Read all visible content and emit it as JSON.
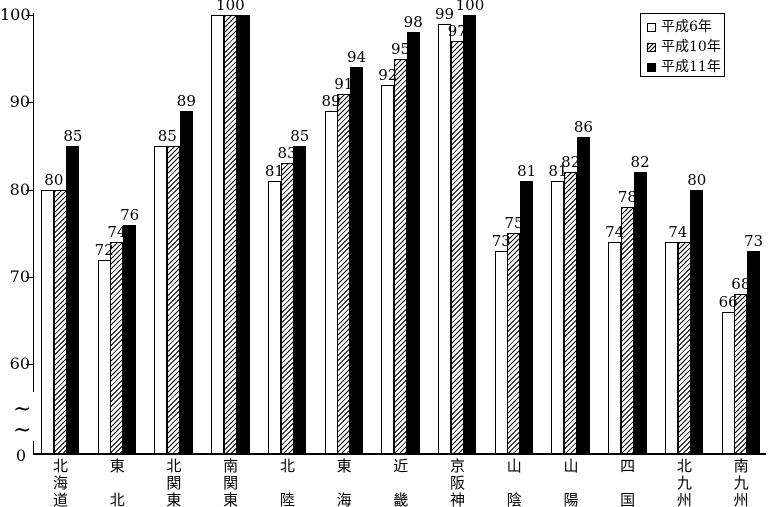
{
  "chart_data": {
    "type": "bar",
    "title": "",
    "xlabel": "",
    "ylabel": "",
    "categories": [
      "北海道",
      "東北",
      "北関東",
      "南関東",
      "北陸",
      "東海",
      "近畿",
      "京阪神",
      "山陰",
      "山陽",
      "四国",
      "北九州",
      "南九州"
    ],
    "series": [
      {
        "name": "平成6年",
        "style": "white",
        "values": [
          80,
          72,
          85,
          100,
          81,
          89,
          92,
          99,
          73,
          81,
          74,
          74,
          66
        ]
      },
      {
        "name": "平成10年",
        "style": "hatched",
        "values": [
          80,
          74,
          85,
          100,
          83,
          91,
          95,
          97,
          75,
          82,
          78,
          74,
          68
        ]
      },
      {
        "name": "平成11年",
        "style": "black",
        "values": [
          85,
          76,
          89,
          100,
          85,
          94,
          98,
          100,
          81,
          86,
          82,
          80,
          73
        ]
      }
    ],
    "y_ticks": [
      "100",
      "90",
      "80",
      "70",
      "60"
    ],
    "y_zero_label": "0",
    "axis_break_symbol": "~",
    "axis_break": true,
    "ylim_display": [
      60,
      100
    ],
    "value_labels_shown": true,
    "legend_position": "top-right",
    "grid": false,
    "colors": {
      "foreground": "#000000",
      "background": "#ffffff"
    }
  }
}
